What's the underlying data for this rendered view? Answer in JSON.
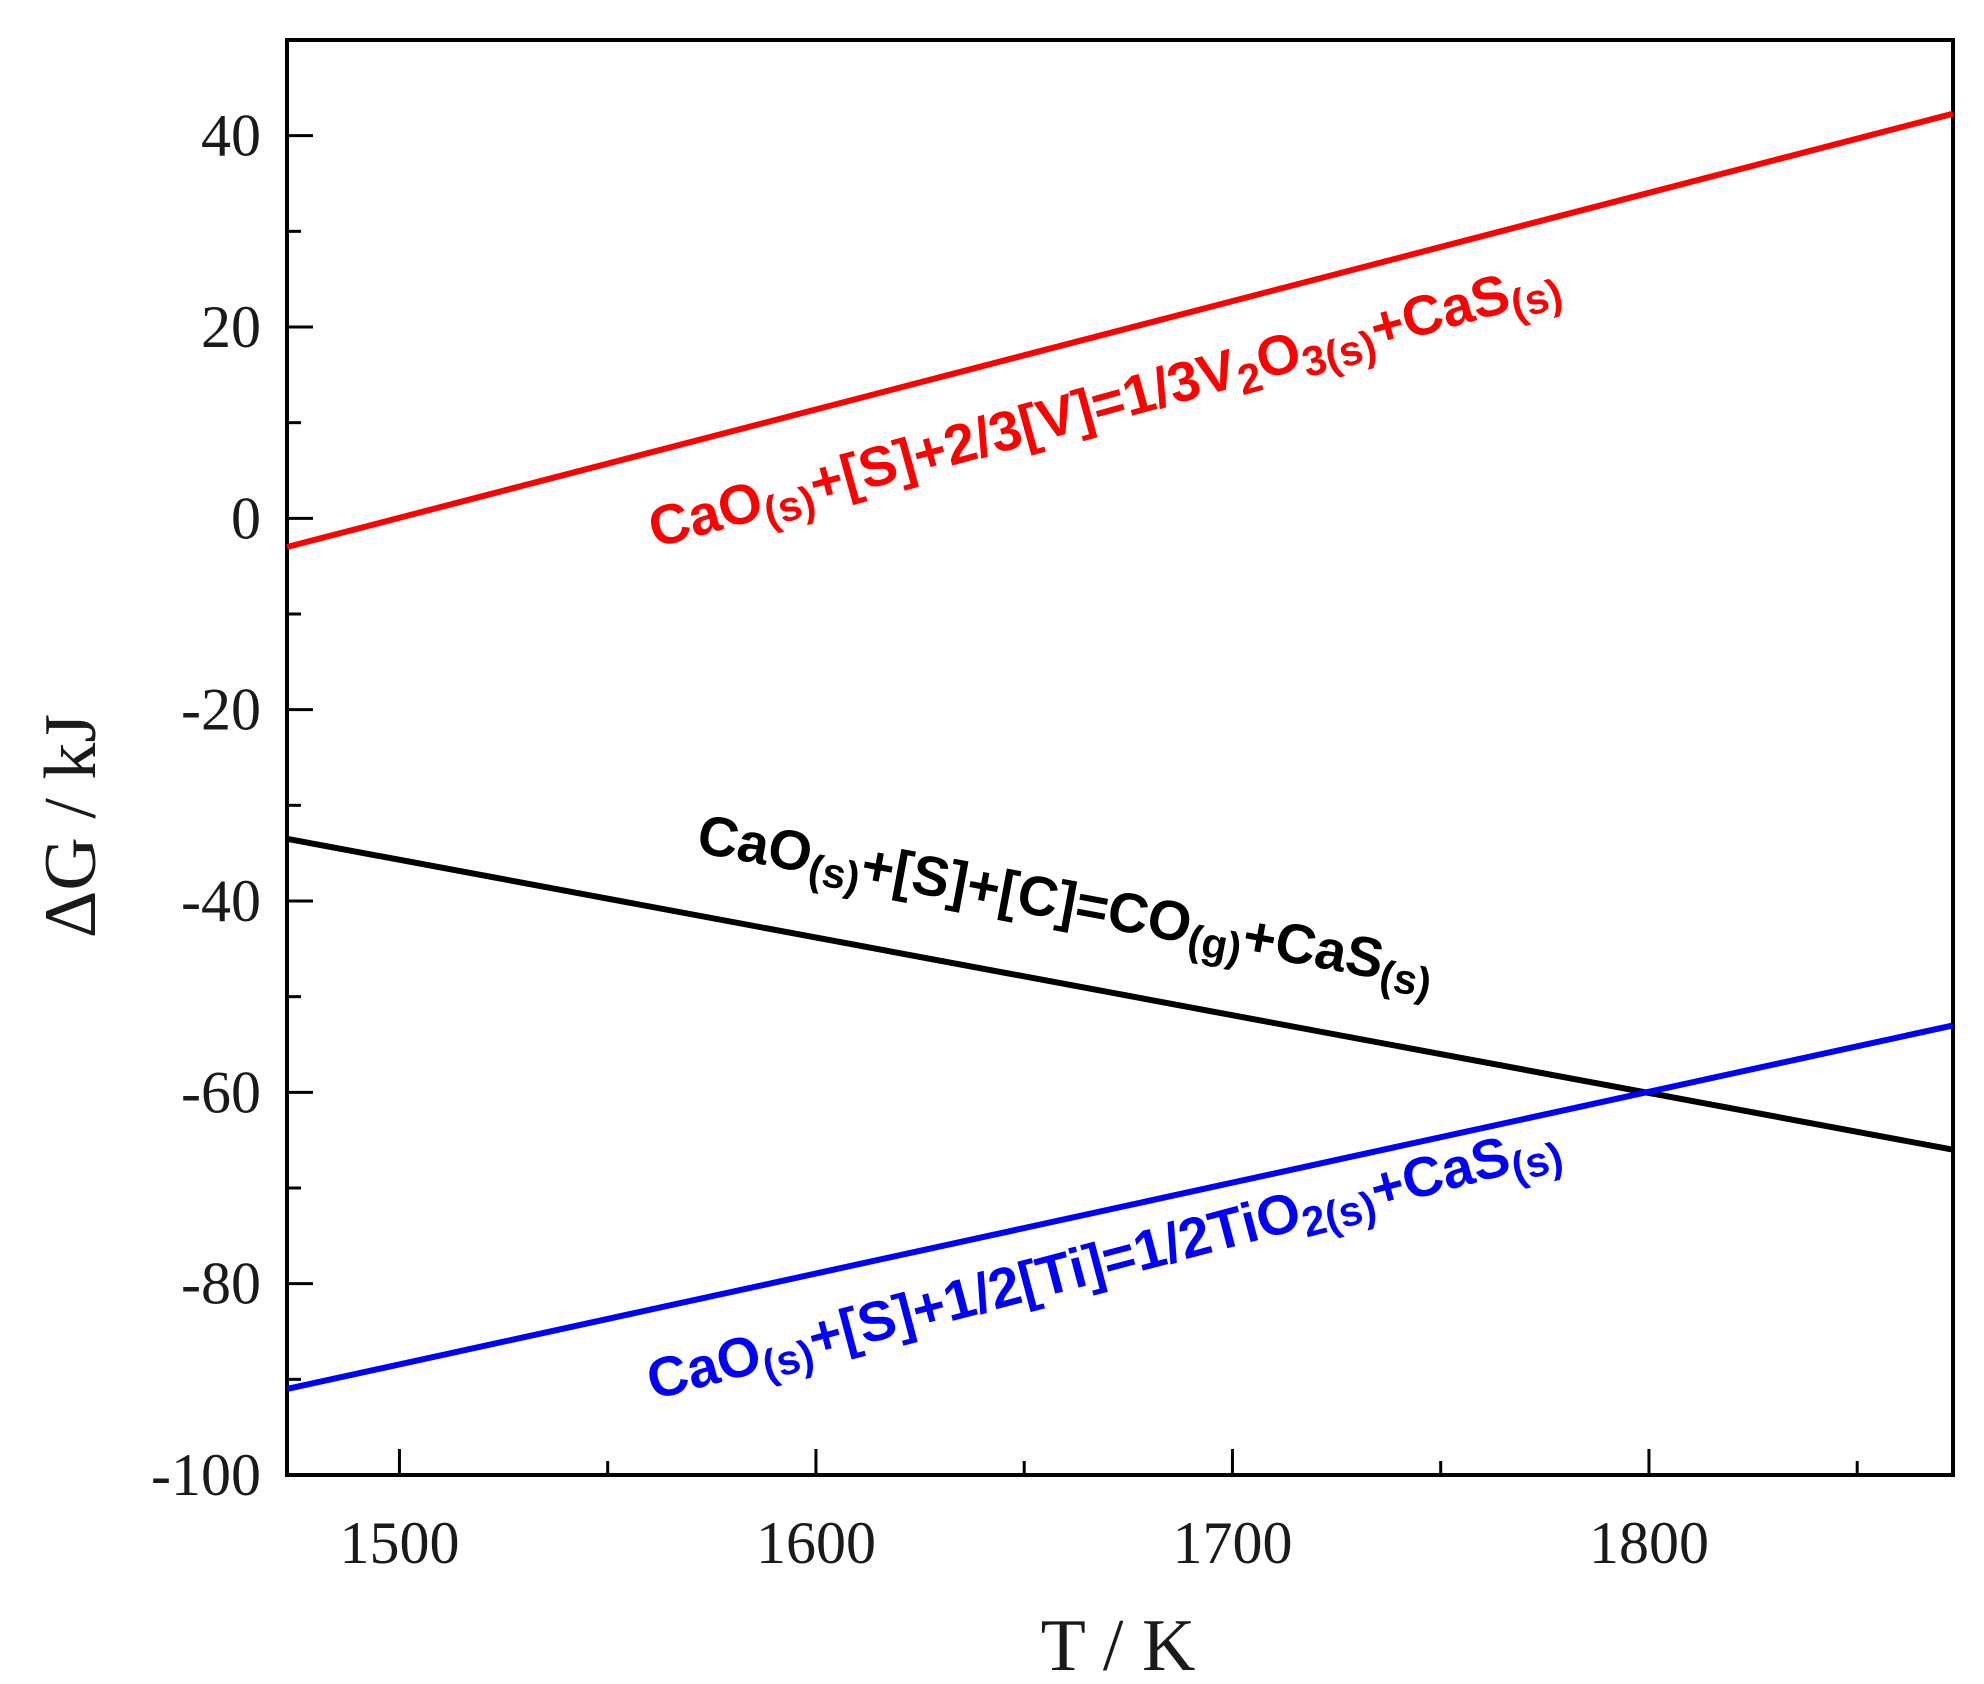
{
  "chart_data": {
    "type": "line",
    "title": "",
    "xlabel": "T / K",
    "ylabel": "ΔG / kJ",
    "xlim": [
      1473,
      1873
    ],
    "ylim": [
      -100,
      50
    ],
    "xticks": [
      1500,
      1600,
      1700,
      1800
    ],
    "xtick_labels": [
      "1500",
      "1600",
      "1700",
      "1800"
    ],
    "xminor": [
      1550,
      1650,
      1750,
      1850
    ],
    "yticks": [
      -100,
      -80,
      -60,
      -40,
      -20,
      0,
      20,
      40
    ],
    "ytick_labels": [
      "-100",
      "-80",
      "-60",
      "-40",
      "-20",
      "0",
      "20",
      "40"
    ],
    "yminor": [
      -90,
      -70,
      -50,
      -30,
      -10,
      10,
      30,
      50
    ],
    "grid": false,
    "legend": "none",
    "series": [
      {
        "id": "vanadium",
        "color": "#ff0000",
        "x": [
          1473,
          1873
        ],
        "y": [
          -3,
          42.3
        ],
        "label_parts": [
          {
            "t": "CaO",
            "sub": false
          },
          {
            "t": "(s)",
            "sub": true
          },
          {
            "t": "+[S]+2/3[V]=1/3V",
            "sub": false
          },
          {
            "t": "2",
            "sub": true
          },
          {
            "t": "O",
            "sub": false
          },
          {
            "t": "3(s)",
            "sub": true
          },
          {
            "t": "+CaS",
            "sub": false
          },
          {
            "t": "(s)",
            "sub": true
          }
        ]
      },
      {
        "id": "carbon",
        "color": "#000000",
        "x": [
          1473,
          1873
        ],
        "y": [
          -33.5,
          -66
        ],
        "label_parts": [
          {
            "t": "CaO",
            "sub": false
          },
          {
            "t": "(s)",
            "sub": true
          },
          {
            "t": "+[S]+[C]=CO",
            "sub": false
          },
          {
            "t": "(g)",
            "sub": true
          },
          {
            "t": "+CaS",
            "sub": false
          },
          {
            "t": "(s)",
            "sub": true
          }
        ]
      },
      {
        "id": "titanium",
        "color": "#0000ff",
        "x": [
          1473,
          1873
        ],
        "y": [
          -91,
          -53
        ],
        "label_parts": [
          {
            "t": "CaO",
            "sub": false
          },
          {
            "t": "(s)",
            "sub": true
          },
          {
            "t": "+[S]+1/2[Ti]=1/2TiO",
            "sub": false
          },
          {
            "t": "2(s)",
            "sub": true
          },
          {
            "t": "+CaS",
            "sub": false
          },
          {
            "t": "(s)",
            "sub": true
          }
        ]
      }
    ]
  }
}
